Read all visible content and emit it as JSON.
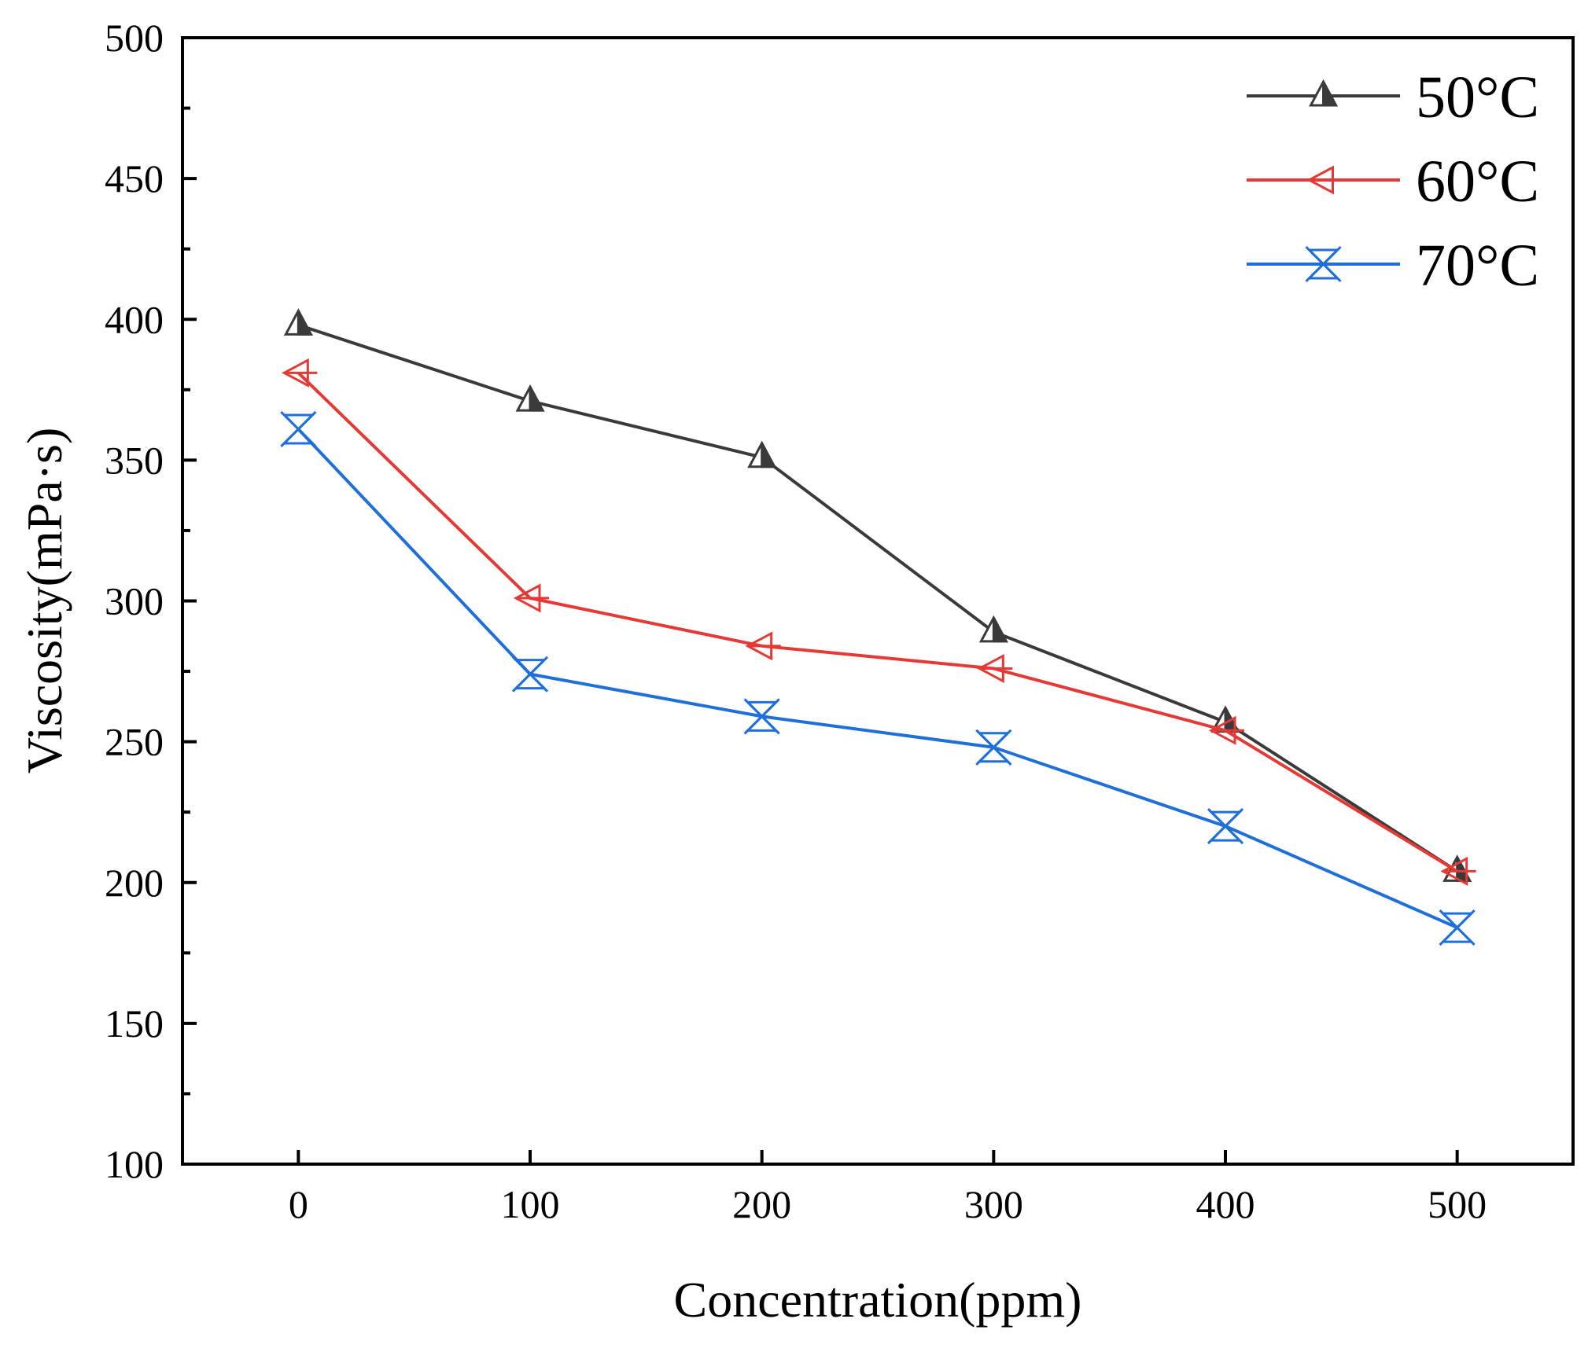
{
  "chart_data": {
    "type": "line",
    "title": "",
    "xlabel": "Concentration(ppm)",
    "ylabel": "Viscosity(mPa·s)",
    "x": [
      0,
      100,
      200,
      300,
      400,
      500
    ],
    "xlim": [
      -50,
      550
    ],
    "ylim": [
      100,
      500
    ],
    "x_ticks": [
      "0",
      "100",
      "200",
      "300",
      "400",
      "500"
    ],
    "y_ticks": [
      "100",
      "150",
      "200",
      "250",
      "300",
      "350",
      "400",
      "450",
      "500"
    ],
    "legend_position": "top-right",
    "grid": false,
    "series": [
      {
        "name": "50°C",
        "color": "#3a3a3a",
        "marker": "triangle-up-half-filled",
        "values": [
          398,
          371,
          351,
          289,
          257,
          204
        ]
      },
      {
        "name": "60°C",
        "color": "#e53935",
        "marker": "triangle-left-open",
        "values": [
          381,
          301,
          284,
          276,
          254,
          204
        ]
      },
      {
        "name": "70°C",
        "color": "#1e6fd9",
        "marker": "hourglass-x",
        "values": [
          361,
          274,
          259,
          248,
          220,
          184
        ]
      }
    ]
  }
}
